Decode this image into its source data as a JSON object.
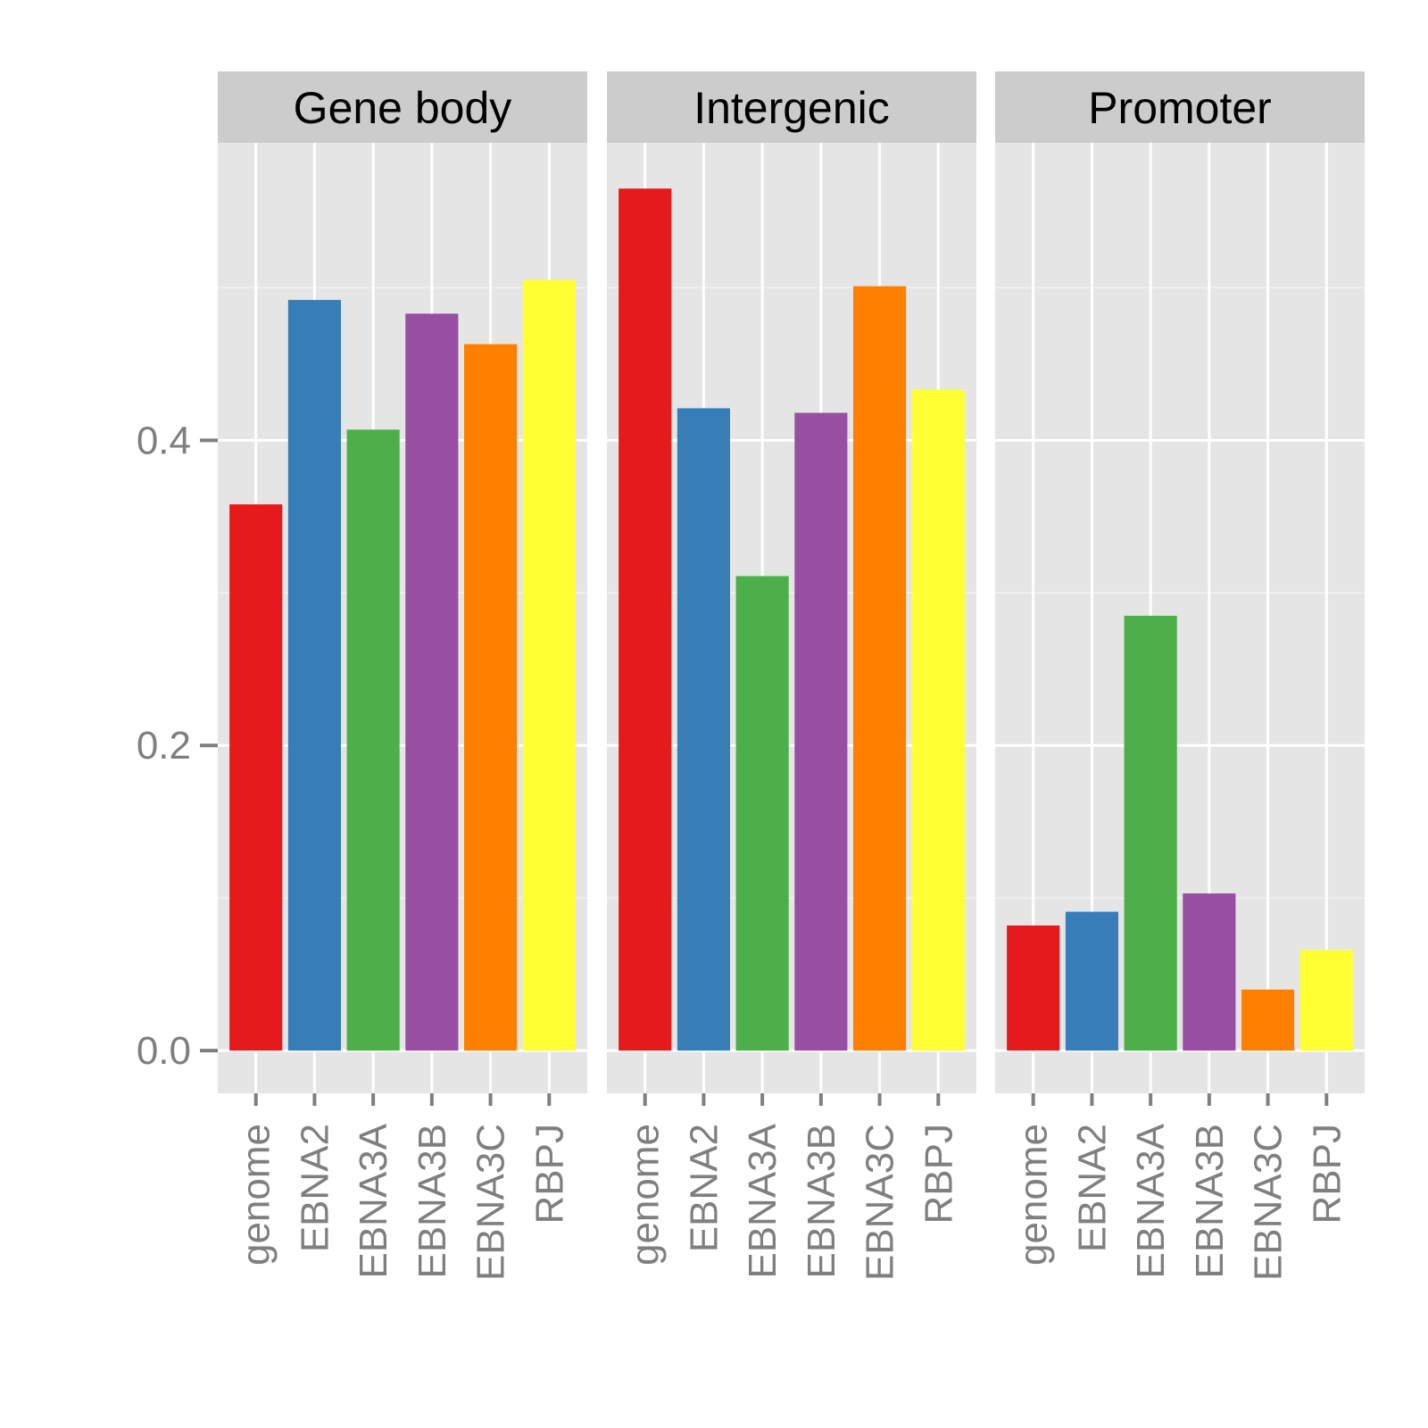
{
  "chart_data": {
    "type": "bar",
    "panels": [
      "Gene body",
      "Intergenic",
      "Promoter"
    ],
    "categories": [
      "genome",
      "EBNA2",
      "EBNA3A",
      "EBNA3B",
      "EBNA3C",
      "RBPJ"
    ],
    "colors": [
      "#e41a1c",
      "#377eb8",
      "#4daf4a",
      "#984ea3",
      "#ff7f00",
      "#ffff33"
    ],
    "series": [
      {
        "panel": "Gene body",
        "values": [
          0.358,
          0.492,
          0.407,
          0.483,
          0.463,
          0.505
        ]
      },
      {
        "panel": "Intergenic",
        "values": [
          0.565,
          0.421,
          0.311,
          0.418,
          0.501,
          0.433
        ]
      },
      {
        "panel": "Promoter",
        "values": [
          0.082,
          0.091,
          0.285,
          0.103,
          0.04,
          0.066
        ]
      }
    ],
    "y_ticks": [
      "0.0",
      "0.2",
      "0.4"
    ],
    "ylim": [
      -0.028,
      0.595
    ],
    "xlabel": "",
    "ylabel": "",
    "grid": true,
    "legend": "none"
  }
}
